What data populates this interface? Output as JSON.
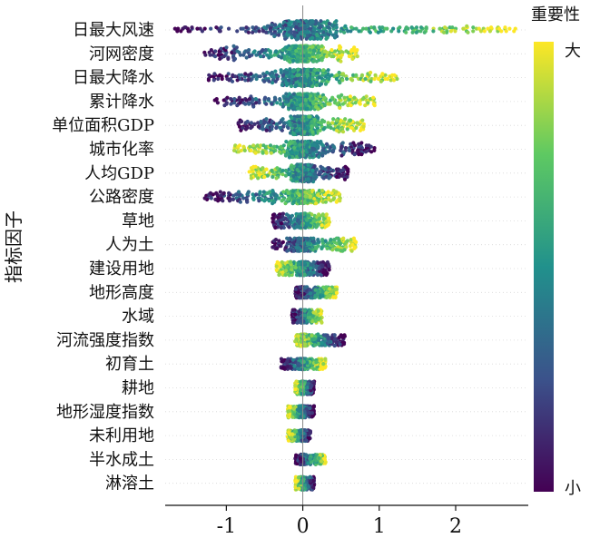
{
  "chart_data": {
    "type": "scatter",
    "subtype": "shap-beeswarm",
    "ylabel": "指标因子",
    "xlabel": "",
    "xlim": [
      -1.8,
      2.95
    ],
    "xticks": [
      -1,
      0,
      1,
      2
    ],
    "grid": false,
    "colorbar": {
      "title": "重要性",
      "high_label": "大",
      "low_label": "小",
      "colors": [
        "#440154",
        "#3b528b",
        "#21918c",
        "#5ec962",
        "#fde725"
      ]
    },
    "features": [
      {
        "name": "日最大风速",
        "min": -1.7,
        "max": 2.8,
        "spread": 0.85,
        "hiSide": 1
      },
      {
        "name": "河网密度",
        "min": -1.3,
        "max": 0.72,
        "spread": 0.7,
        "hiSide": 1
      },
      {
        "name": "日最大降水",
        "min": -1.25,
        "max": 1.25,
        "spread": 0.75,
        "hiSide": 1
      },
      {
        "name": "累计降水",
        "min": -1.2,
        "max": 0.95,
        "spread": 0.65,
        "hiSide": 1
      },
      {
        "name": "单位面积GDP",
        "min": -0.85,
        "max": 0.8,
        "spread": 0.8,
        "hiSide": 1
      },
      {
        "name": "城市化率",
        "min": -0.9,
        "max": 0.95,
        "spread": 0.7,
        "hiSide": -1
      },
      {
        "name": "人均GDP",
        "min": -0.7,
        "max": 0.6,
        "spread": 0.75,
        "hiSide": -1
      },
      {
        "name": "公路密度",
        "min": -1.3,
        "max": 0.5,
        "spread": 0.5,
        "hiSide": 1
      },
      {
        "name": "草地",
        "min": -0.4,
        "max": 0.35,
        "spread": 0.6,
        "hiSide": 1
      },
      {
        "name": "人为土",
        "min": -0.4,
        "max": 0.7,
        "spread": 0.5,
        "hiSide": 1
      },
      {
        "name": "建设用地",
        "min": -0.35,
        "max": 0.35,
        "spread": 0.55,
        "hiSide": -1
      },
      {
        "name": "地形高度",
        "min": -0.1,
        "max": 0.45,
        "spread": 0.4,
        "hiSide": 1
      },
      {
        "name": "水域",
        "min": -0.15,
        "max": 0.25,
        "spread": 0.5,
        "hiSide": 1
      },
      {
        "name": "河流强度指数",
        "min": -0.1,
        "max": 0.55,
        "spread": 0.45,
        "hiSide": -1
      },
      {
        "name": "初育土",
        "min": -0.3,
        "max": 0.3,
        "spread": 0.4,
        "hiSide": 1
      },
      {
        "name": "耕地",
        "min": -0.1,
        "max": 0.15,
        "spread": 0.5,
        "hiSide": -1
      },
      {
        "name": "地形湿度指数",
        "min": -0.2,
        "max": 0.15,
        "spread": 0.45,
        "hiSide": -1
      },
      {
        "name": "未利用地",
        "min": -0.2,
        "max": 0.1,
        "spread": 0.4,
        "hiSide": -1
      },
      {
        "name": "半水成土",
        "min": -0.1,
        "max": 0.3,
        "spread": 0.35,
        "hiSide": 1
      },
      {
        "name": "淋溶土",
        "min": -0.1,
        "max": 0.15,
        "spread": 0.5,
        "hiSide": -1
      }
    ]
  }
}
